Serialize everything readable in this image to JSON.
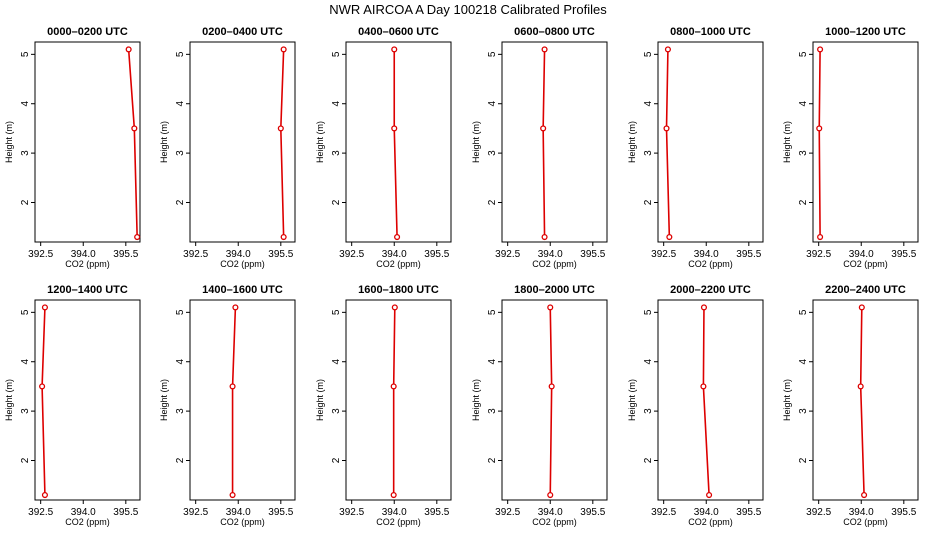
{
  "figure_title": "NWR AIRCOA A  Day 100218  Calibrated Profiles",
  "colors": {
    "series": "#dd0000",
    "axis": "#000000",
    "background": "#ffffff"
  },
  "chart_data": {
    "type": "line",
    "layout": "2 rows x 6 columns of small multiples",
    "xlabel": "CO2 (ppm)",
    "ylabel": "Height (m)",
    "xlim": [
      392.3,
      396.0
    ],
    "ylim": [
      1.2,
      5.25
    ],
    "xticks": [
      392.5,
      394.0,
      395.5
    ],
    "xtick_labels": [
      "392.5",
      "394.0",
      "395.5"
    ],
    "yticks": [
      2,
      3,
      4,
      5
    ],
    "ytick_labels": [
      "2",
      "3",
      "4",
      "5"
    ],
    "grid": false,
    "heights": [
      1.3,
      3.5,
      5.1
    ],
    "panels": [
      {
        "title": "0000–0200 UTC",
        "co2": [
          395.9,
          395.8,
          395.6
        ]
      },
      {
        "title": "0200–0400 UTC",
        "co2": [
          395.6,
          395.5,
          395.6
        ]
      },
      {
        "title": "0400–0600 UTC",
        "co2": [
          394.1,
          394.0,
          394.0
        ]
      },
      {
        "title": "0600–0800 UTC",
        "co2": [
          393.8,
          393.75,
          393.8
        ]
      },
      {
        "title": "0800–1000 UTC",
        "co2": [
          392.7,
          392.6,
          392.65
        ]
      },
      {
        "title": "1000–1200 UTC",
        "co2": [
          392.55,
          392.52,
          392.55
        ]
      },
      {
        "title": "1200–1400 UTC",
        "co2": [
          392.65,
          392.55,
          392.65
        ]
      },
      {
        "title": "1400–1600 UTC",
        "co2": [
          393.8,
          393.8,
          393.9
        ]
      },
      {
        "title": "1600–1800 UTC",
        "co2": [
          393.98,
          393.98,
          394.02
        ]
      },
      {
        "title": "1800–2000 UTC",
        "co2": [
          394.0,
          394.05,
          394.0
        ]
      },
      {
        "title": "2000–2200 UTC",
        "co2": [
          394.1,
          393.9,
          393.92
        ]
      },
      {
        "title": "2200–2400 UTC",
        "co2": [
          394.1,
          393.98,
          394.02
        ]
      }
    ]
  }
}
